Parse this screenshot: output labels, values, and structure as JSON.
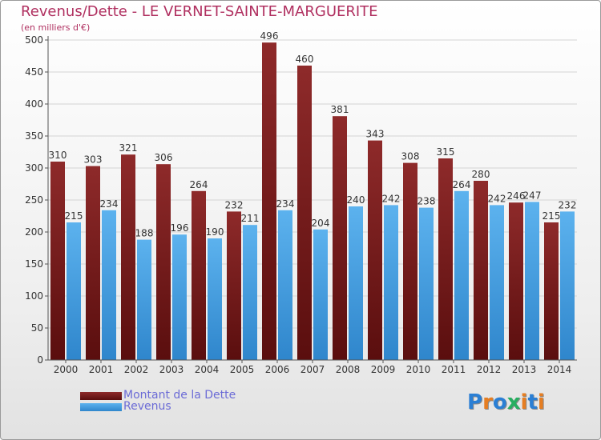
{
  "header": {
    "title": "Revenus/Dette - LE VERNET-SAINTE-MARGUERITE",
    "subtitle": "(en milliers d'€)"
  },
  "legend": {
    "items": [
      {
        "label": "Montant de la Dette",
        "color": "#7a1f1f"
      },
      {
        "label": "Revenus",
        "color": "#4ea6e6"
      }
    ]
  },
  "logo": {
    "text": "Proxiti",
    "colors": [
      "#2b7fd4",
      "#e67e22",
      "#2b7fd4",
      "#27ae60",
      "#e67e22",
      "#2b7fd4",
      "#e67e22"
    ]
  },
  "chart_data": {
    "type": "bar",
    "title": "Revenus/Dette - LE VERNET-SAINTE-MARGUERITE",
    "ylabel": "(en milliers d'€)",
    "ylim": [
      0,
      500
    ],
    "yticks": [
      0,
      50,
      100,
      150,
      200,
      250,
      300,
      350,
      400,
      450,
      500
    ],
    "grid": true,
    "legend_position": "bottom-left",
    "categories": [
      "2000",
      "2001",
      "2002",
      "2003",
      "2004",
      "2005",
      "2006",
      "2007",
      "2008",
      "2009",
      "2010",
      "2011",
      "2012",
      "2013",
      "2014"
    ],
    "series": [
      {
        "name": "Montant de la Dette",
        "color": "#7a1f1f",
        "values": [
          310,
          303,
          321,
          306,
          264,
          232,
          496,
          460,
          381,
          343,
          308,
          315,
          280,
          246,
          215
        ]
      },
      {
        "name": "Revenus",
        "color": "#4ea6e6",
        "values": [
          215,
          234,
          188,
          196,
          190,
          211,
          234,
          204,
          240,
          242,
          238,
          264,
          242,
          247,
          232
        ]
      }
    ]
  }
}
